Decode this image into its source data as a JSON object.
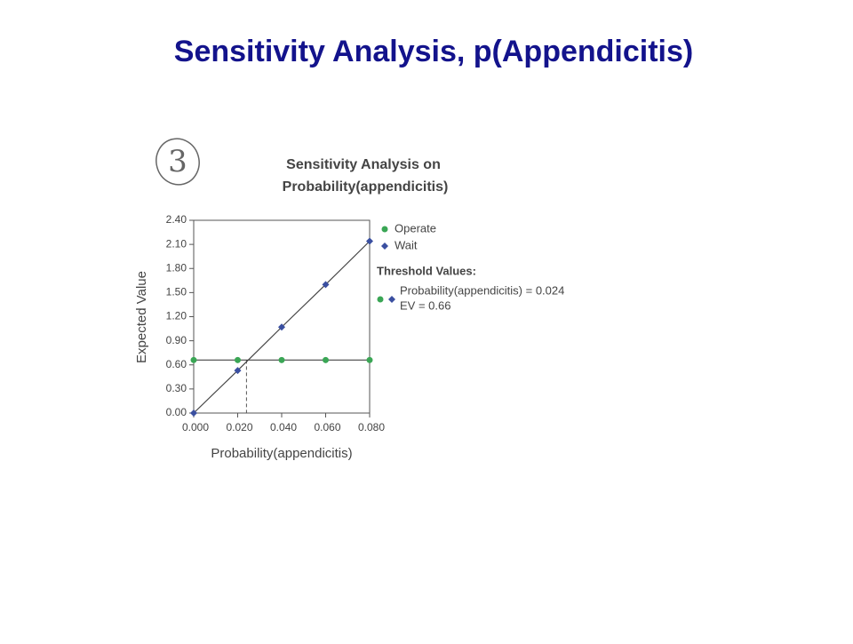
{
  "slide_title": "Sensitivity Analysis, p(Appendicitis)",
  "annotation": "3",
  "chart_data": {
    "type": "line",
    "title": [
      "Sensitivity Analysis on",
      "Probability(appendicitis)"
    ],
    "xlabel": "Probability(appendicitis)",
    "ylabel": "Expected Value",
    "x": [
      0,
      0.02,
      0.04,
      0.06,
      0.08
    ],
    "series": [
      {
        "name": "Operate",
        "color": "#3aa655",
        "marker": "circle",
        "values": [
          0.66,
          0.66,
          0.66,
          0.66,
          0.66
        ]
      },
      {
        "name": "Wait",
        "color": "#3a4fa0",
        "marker": "diamond",
        "values": [
          0,
          0.53,
          1.07,
          1.6,
          2.14
        ]
      }
    ],
    "xlim": [
      0,
      0.08
    ],
    "xticks": [
      {
        "value": 0,
        "label": "0.000"
      },
      {
        "value": 0.02,
        "label": "0.020"
      },
      {
        "value": 0.04,
        "label": "0.040"
      },
      {
        "value": 0.06,
        "label": "0.060"
      },
      {
        "value": 0.08,
        "label": "0.080"
      }
    ],
    "ylim": [
      0,
      2.4
    ],
    "yticks": [
      {
        "value": 0,
        "label": "0.00"
      },
      {
        "value": 0.3,
        "label": "0.30"
      },
      {
        "value": 0.6,
        "label": "0.60"
      },
      {
        "value": 0.9,
        "label": "0.90"
      },
      {
        "value": 1.2,
        "label": "1.20"
      },
      {
        "value": 1.5,
        "label": "1.50"
      },
      {
        "value": 1.8,
        "label": "1.80"
      },
      {
        "value": 2.1,
        "label": "2.10"
      },
      {
        "value": 2.4,
        "label": "2.40"
      }
    ],
    "threshold": {
      "label": "Threshold Values:",
      "x": 0.024,
      "x_label": "Probability(appendicitis) = 0.024",
      "y": 0.66,
      "y_label": "EV = 0.66"
    }
  }
}
